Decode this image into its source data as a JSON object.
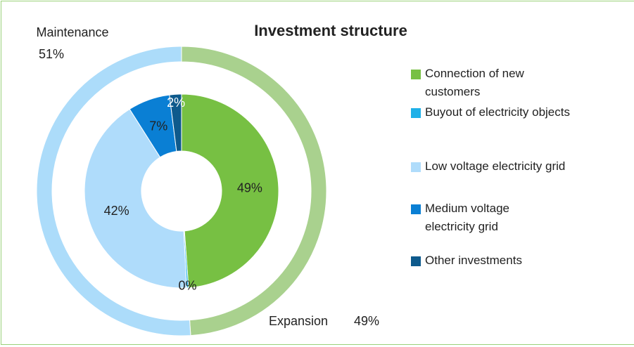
{
  "chart_data": {
    "type": "nested-donut",
    "title": "Investment structure",
    "outer": {
      "categories": [
        "Expansion",
        "Maintenance"
      ],
      "values": [
        49,
        51
      ],
      "value_labels": [
        "49%",
        "51%"
      ],
      "colors": [
        "#a9d18e",
        "#acdcfa"
      ]
    },
    "inner": {
      "categories": [
        "Connection of new customers",
        "Buyout of electricity objects",
        "Low voltage electricity grid",
        "Medium voltage electricity grid",
        "Other investments"
      ],
      "values": [
        49,
        0.3,
        42,
        7,
        2
      ],
      "value_labels": [
        "49%",
        "0%",
        "42%",
        "7%",
        "2%"
      ],
      "colors": [
        "#77c043",
        "#1fb0e8",
        "#afdcfb",
        "#0a7fd4",
        "#0e5a8c"
      ]
    }
  }
}
